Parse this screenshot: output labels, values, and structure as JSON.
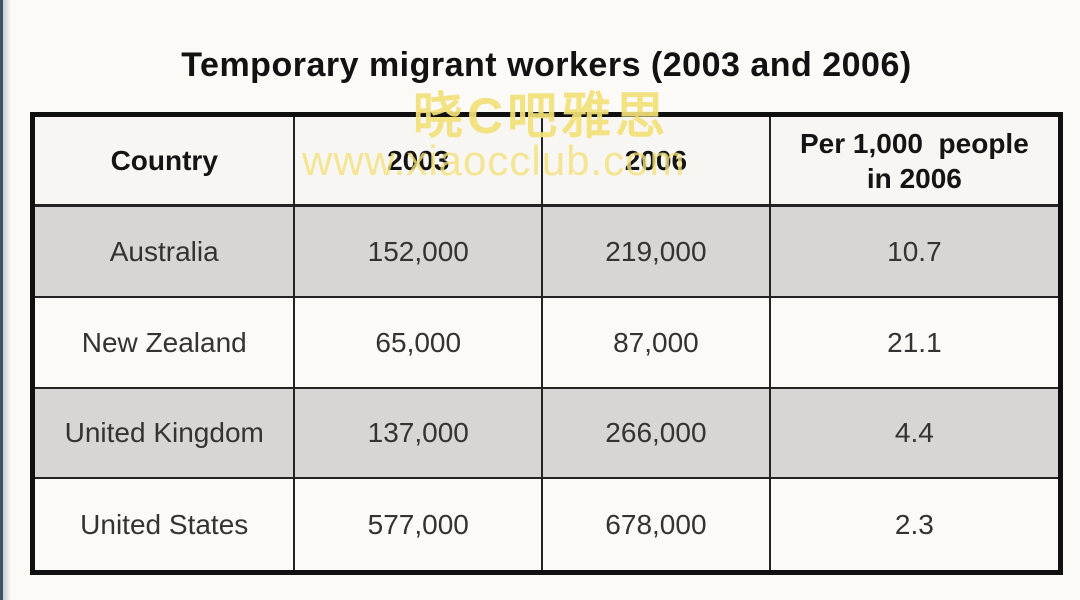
{
  "title": "Temporary migrant workers (2003 and 2006)",
  "watermark": {
    "line1": "晓C吧雅思",
    "line2": "www.xiaocclub.com",
    "color": "#f2e179"
  },
  "table": {
    "headers": {
      "country": "Country",
      "y2003": "2003",
      "y2006": "2006",
      "per1000_line1": "Per 1,000  people",
      "per1000_line2": "in 2006"
    },
    "rows": [
      {
        "country": "Australia",
        "y2003": "152,000",
        "y2006": "219,000",
        "per1000": "10.7"
      },
      {
        "country": "New Zealand",
        "y2003": "65,000",
        "y2006": "87,000",
        "per1000": "21.1"
      },
      {
        "country": "United Kingdom",
        "y2003": "137,000",
        "y2006": "266,000",
        "per1000": "4.4"
      },
      {
        "country": "United States",
        "y2003": "577,000",
        "y2006": "678,000",
        "per1000": "2.3"
      }
    ]
  },
  "chart_data": {
    "type": "table",
    "title": "Temporary migrant workers (2003 and 2006)",
    "columns": [
      "Country",
      "2003",
      "2006",
      "Per 1,000 people in 2006"
    ],
    "rows": [
      [
        "Australia",
        152000,
        219000,
        10.7
      ],
      [
        "New Zealand",
        65000,
        87000,
        21.1
      ],
      [
        "United Kingdom",
        137000,
        266000,
        4.4
      ],
      [
        "United States",
        577000,
        678000,
        2.3
      ]
    ],
    "shaded_rows": [
      "Australia",
      "United Kingdom"
    ]
  },
  "colors": {
    "shaded_row": "#d7d6d4",
    "plain_row": "#fbfaf6",
    "border": "#101010",
    "watermark": "#f2e179",
    "edge_line": "#42525e"
  }
}
